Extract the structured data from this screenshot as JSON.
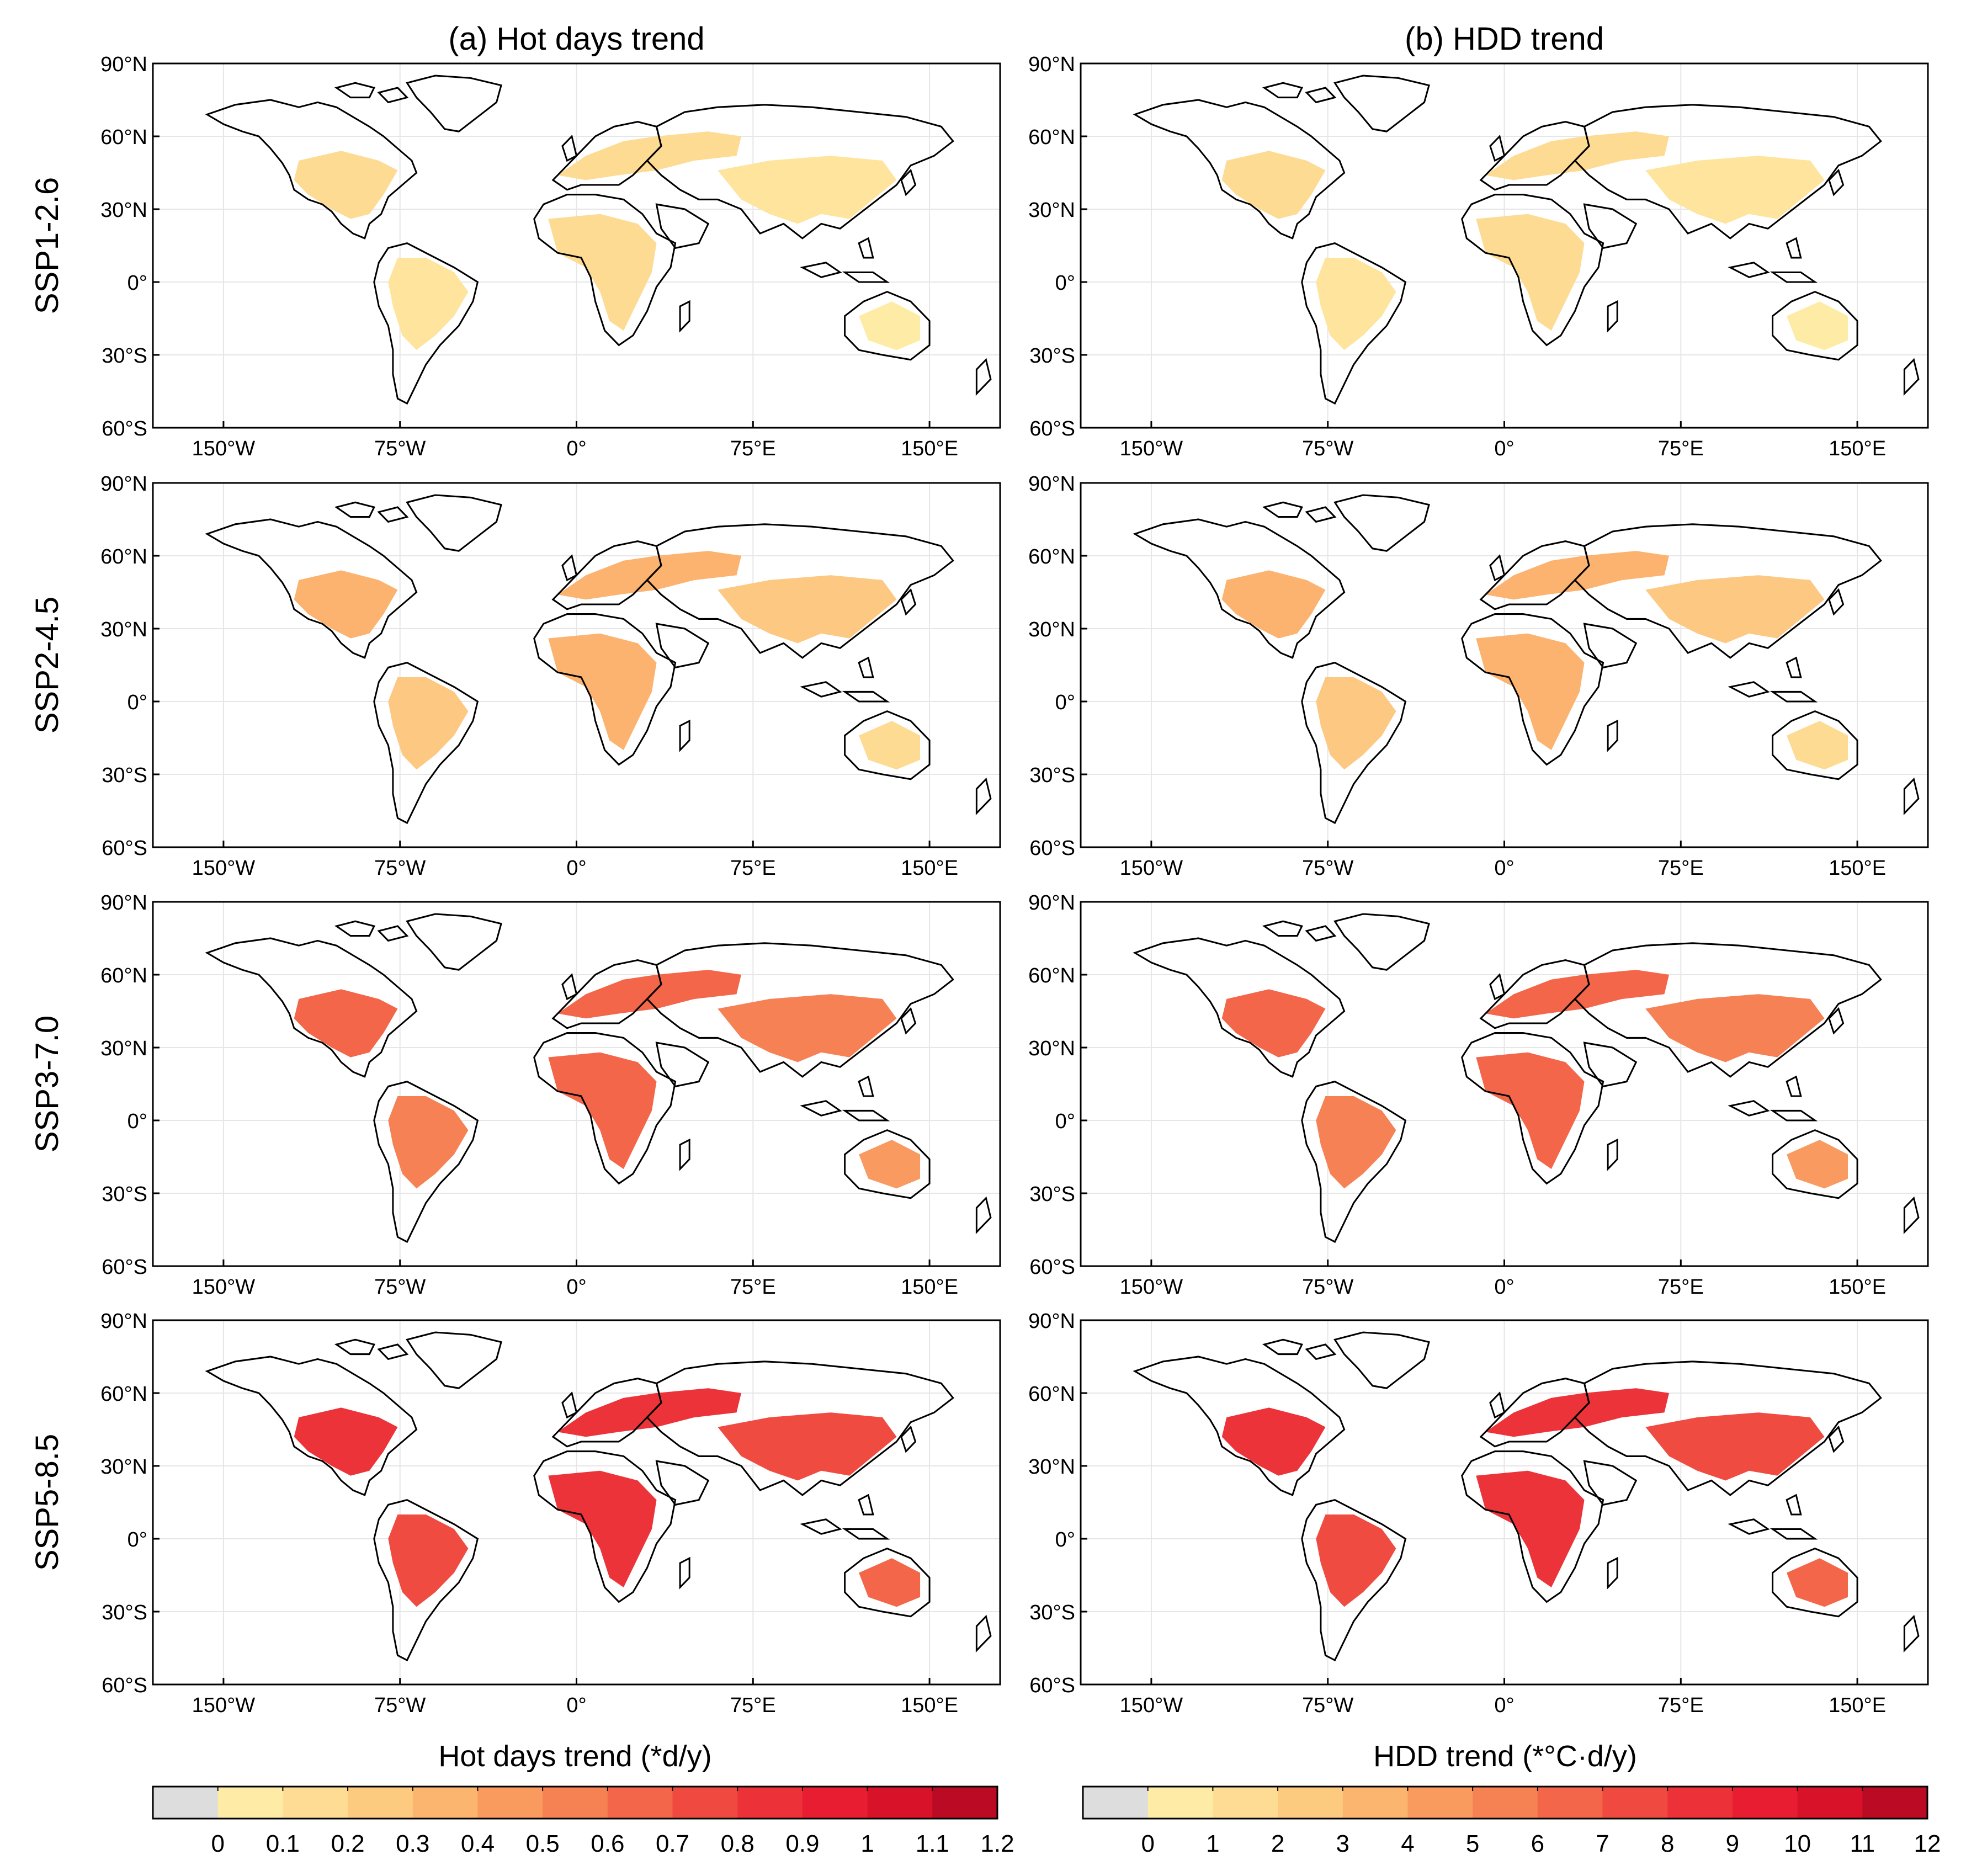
{
  "figure": {
    "columns": [
      {
        "key": "hot",
        "title": "(a) Hot days trend"
      },
      {
        "key": "hdd",
        "title": "(b) HDD trend"
      }
    ],
    "rows": [
      {
        "label": "SSP1-2.6",
        "level": 1
      },
      {
        "label": "SSP2-4.5",
        "level": 2
      },
      {
        "label": "SSP3-7.0",
        "level": 3
      },
      {
        "label": "SSP5-8.5",
        "level": 4
      }
    ],
    "lat_ticks": [
      "90°N",
      "60°N",
      "30°N",
      "0°",
      "30°S",
      "60°S"
    ],
    "lon_ticks": [
      "150°W",
      "75°W",
      "0°",
      "75°E",
      "150°E"
    ],
    "lat_values": [
      90,
      60,
      30,
      0,
      -30,
      -60
    ],
    "lon_values": [
      -150,
      -75,
      0,
      75,
      150
    ],
    "extent": {
      "lon": [
        -180,
        180
      ],
      "lat": [
        -60,
        90
      ]
    }
  },
  "colorbars": [
    {
      "title": "Hot days trend (*d/y)",
      "tick_labels": [
        "0",
        "0.1",
        "0.2",
        "0.3",
        "0.4",
        "0.5",
        "0.6",
        "0.7",
        "0.8",
        "0.9",
        "1",
        "1.1",
        "1.2"
      ],
      "colors": [
        "#dddddd",
        "#feeca6",
        "#fedc93",
        "#fdcb80",
        "#fcb56f",
        "#f99b5f",
        "#f68152",
        "#f36649",
        "#f04a40",
        "#ed3138",
        "#e81d32",
        "#d81229",
        "#bb0a23"
      ]
    },
    {
      "title": "HDD trend (*°C·d/y)",
      "tick_labels": [
        "0",
        "1",
        "2",
        "3",
        "4",
        "5",
        "6",
        "7",
        "8",
        "9",
        "10",
        "11",
        "12"
      ],
      "colors": [
        "#dddddd",
        "#feeca6",
        "#fedc93",
        "#fdcb80",
        "#fcb56f",
        "#f99b5f",
        "#f68152",
        "#f36649",
        "#f04a40",
        "#ed3138",
        "#e81d32",
        "#d81229",
        "#bb0a23"
      ]
    }
  ],
  "colors": {
    "land_outline": "#000000",
    "gridline": "#e6e6e6",
    "background": "#ffffff"
  }
}
